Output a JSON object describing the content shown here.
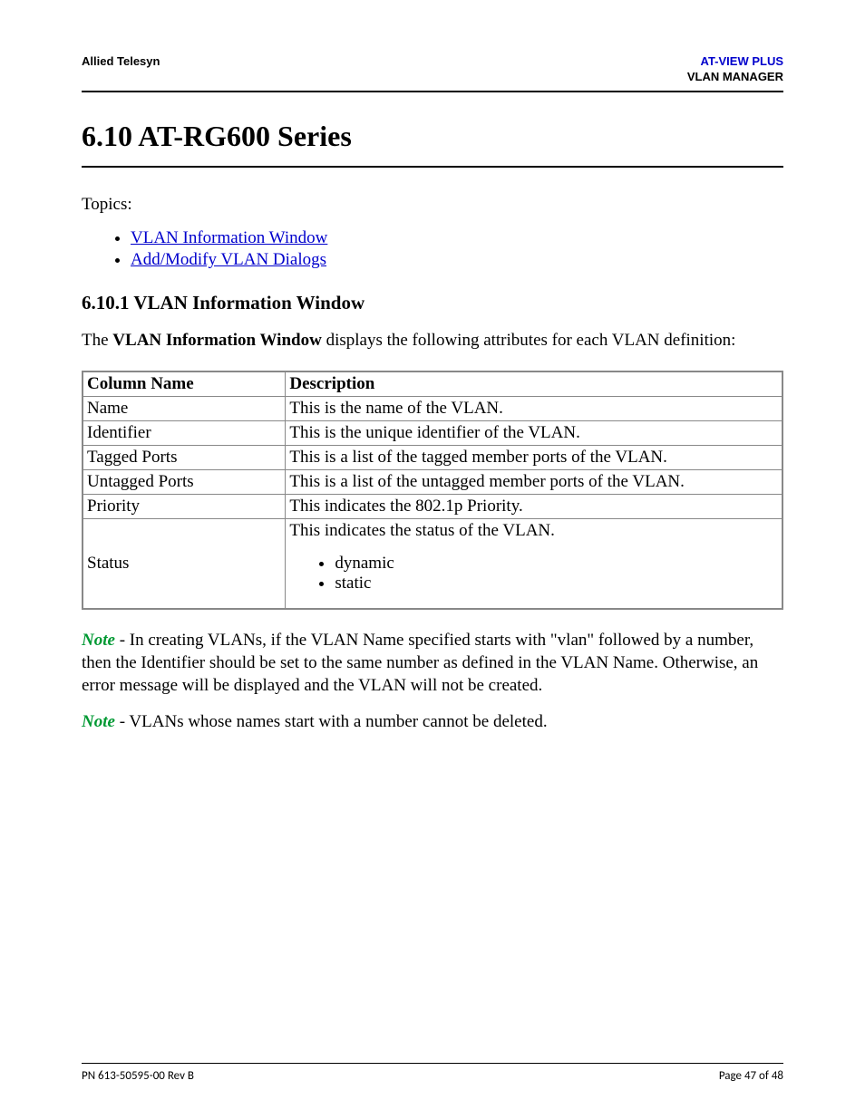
{
  "colors": {
    "link": "#0000cc",
    "note_label": "#009933",
    "text": "#000000",
    "rule": "#000000",
    "table_border": "#888888",
    "background": "#ffffff"
  },
  "typography": {
    "body_font": "Times New Roman",
    "header_font": "Arial",
    "footer_font": "Calibri",
    "h1_size_pt": 24,
    "h2_size_pt": 16,
    "body_size_pt": 14,
    "header_size_pt": 10,
    "footer_size_pt": 10
  },
  "header": {
    "left": "Allied Telesyn",
    "right_line1": "AT-VIEW PLUS",
    "right_line2": "VLAN MANAGER"
  },
  "section": {
    "number_title": "6.10 AT-RG600 Series",
    "topics_label": "Topics:",
    "topics": [
      "VLAN Information Window",
      "Add/Modify VLAN Dialogs"
    ]
  },
  "subsection": {
    "heading": "6.10.1 VLAN Information Window",
    "intro_prefix": "The ",
    "intro_bold": "VLAN Information Window",
    "intro_suffix": " displays the following attributes for each VLAN definition:"
  },
  "table": {
    "type": "table",
    "col_widths_pct": [
      29,
      71
    ],
    "border_color": "#888888",
    "columns": [
      "Column Name",
      "Description"
    ],
    "rows": [
      {
        "name": "Name",
        "desc": "This is the name of the VLAN."
      },
      {
        "name": "Identifier",
        "desc": "This is the unique identifier of the VLAN."
      },
      {
        "name": "Tagged Ports",
        "desc": "This is a list of the tagged member ports of the VLAN."
      },
      {
        "name": "Untagged Ports",
        "desc": "This is a list of the untagged member ports of the VLAN."
      },
      {
        "name": "Priority",
        "desc": "This indicates the 802.1p Priority."
      }
    ],
    "status_row": {
      "name": "Status",
      "desc_intro": "This indicates the status of the VLAN.",
      "bullets": [
        "dynamic",
        "static"
      ]
    }
  },
  "notes": {
    "label": "Note",
    "note1": " - In creating VLANs, if the VLAN Name specified starts with \"vlan\" followed by a number, then the Identifier should be set to the same number as defined in the VLAN Name. Otherwise, an error message will be displayed and the VLAN will not be created.",
    "note2": " - VLANs whose names start with a number cannot be deleted."
  },
  "footer": {
    "left": "PN 613-50595-00 Rev B",
    "right": "Page 47 of 48"
  }
}
